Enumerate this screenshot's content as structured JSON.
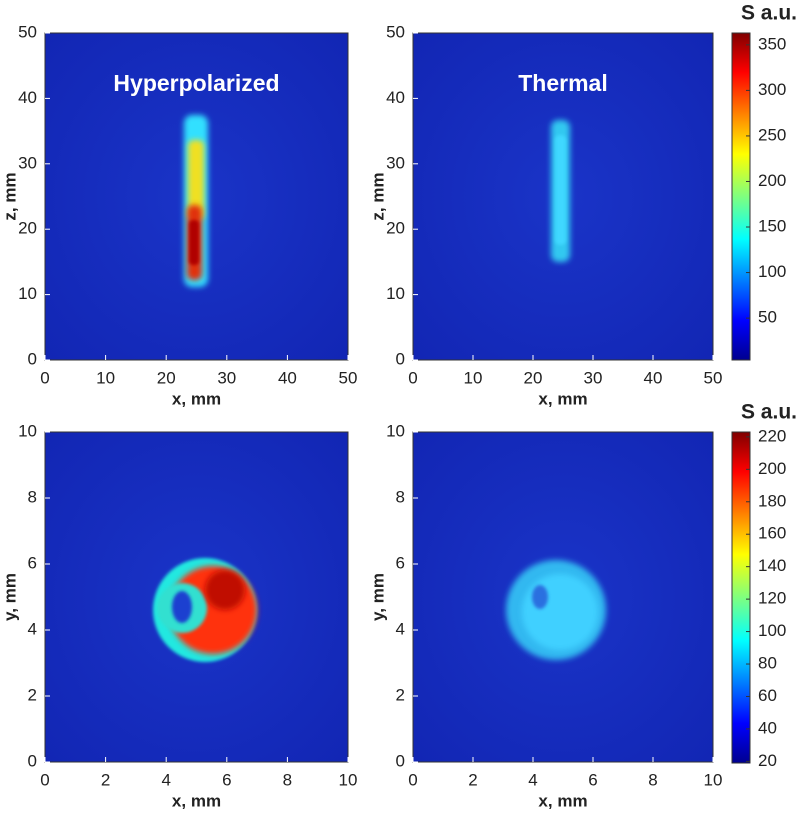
{
  "chart_data": [
    {
      "type": "image",
      "annotation": "Hyperpolarized",
      "xlabel": "x, mm",
      "ylabel": "z, mm",
      "xlim": [
        0,
        50
      ],
      "ylim": [
        0,
        50
      ],
      "xticks": [
        0,
        10,
        20,
        30,
        40,
        50
      ],
      "yticks": [
        0,
        10,
        20,
        30,
        40,
        50
      ]
    },
    {
      "type": "image",
      "annotation": "Thermal",
      "xlabel": "x, mm",
      "ylabel": "z, mm",
      "xlim": [
        0,
        50
      ],
      "ylim": [
        0,
        50
      ],
      "xticks": [
        0,
        10,
        20,
        30,
        40,
        50
      ],
      "yticks": [
        0,
        10,
        20,
        30,
        40,
        50
      ]
    },
    {
      "type": "image",
      "xlabel": "x, mm",
      "ylabel": "y, mm",
      "xlim": [
        0,
        10
      ],
      "ylim": [
        0,
        10
      ],
      "xticks": [
        0,
        2,
        4,
        6,
        8,
        10
      ],
      "yticks": [
        0,
        2,
        4,
        6,
        8,
        10
      ]
    },
    {
      "type": "image",
      "xlabel": "x, mm",
      "ylabel": "y, mm",
      "xlim": [
        0,
        10
      ],
      "ylim": [
        0,
        10
      ],
      "xticks": [
        0,
        2,
        4,
        6,
        8,
        10
      ],
      "yticks": [
        0,
        2,
        4,
        6,
        8,
        10
      ]
    },
    {
      "type": "colorbar",
      "title": "S a.u.",
      "colormap": "jet",
      "ylim": [
        4,
        363
      ],
      "yticks": [
        50,
        100,
        150,
        200,
        250,
        300,
        350
      ]
    },
    {
      "type": "colorbar",
      "title": "S a.u.",
      "colormap": "jet",
      "ylim": [
        19,
        223
      ],
      "yticks": [
        20,
        40,
        60,
        80,
        100,
        120,
        140,
        160,
        180,
        200,
        220
      ]
    }
  ]
}
